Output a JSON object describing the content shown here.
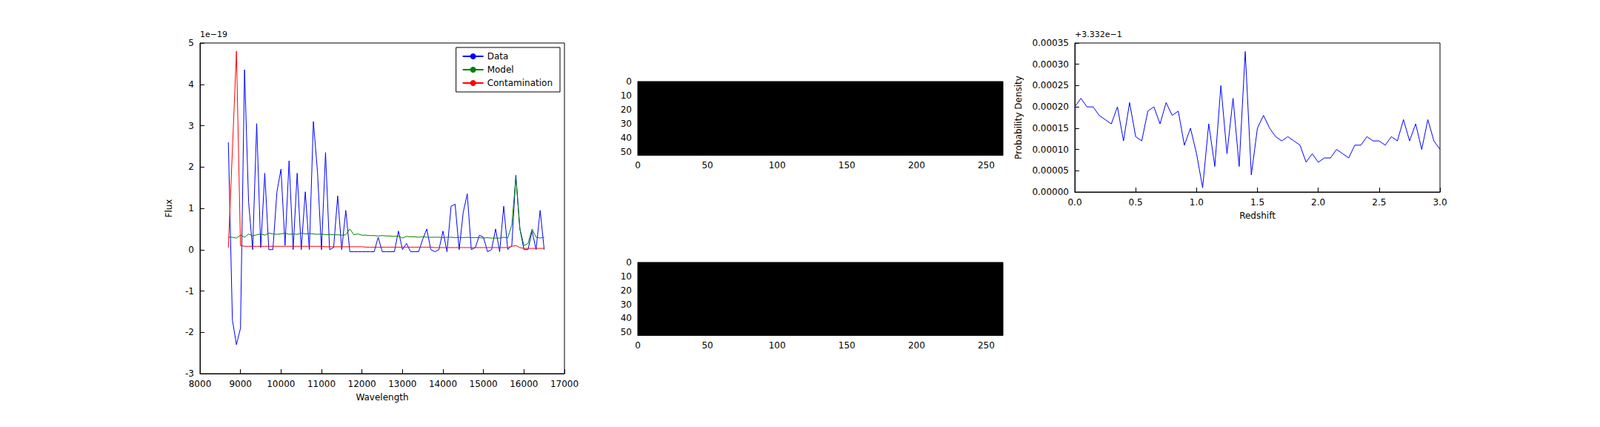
{
  "chart_data": [
    {
      "type": "line",
      "x_label": "Wavelength",
      "y_label": "Flux",
      "y_offset_text": "1e−19",
      "x": [
        8700,
        8800,
        8900,
        9000,
        9100,
        9200,
        9300,
        9400,
        9500,
        9600,
        9700,
        9800,
        9900,
        10000,
        10100,
        10200,
        10300,
        10400,
        10500,
        10600,
        10700,
        10800,
        10900,
        11000,
        11100,
        11200,
        11300,
        11400,
        11500,
        11600,
        11700,
        11800,
        11900,
        12000,
        12100,
        12200,
        12300,
        12400,
        12500,
        12600,
        12700,
        12800,
        12900,
        13000,
        13100,
        13200,
        13300,
        13400,
        13500,
        13600,
        13700,
        13800,
        13900,
        14000,
        14100,
        14200,
        14300,
        14400,
        14500,
        14600,
        14700,
        14800,
        14900,
        15000,
        15100,
        15200,
        15300,
        15400,
        15500,
        15600,
        15700,
        15800,
        15900,
        16000,
        16100,
        16200,
        16300,
        16400,
        16500
      ],
      "series": [
        {
          "name": "Data",
          "color": "#0000ff",
          "values": [
            2.6,
            -1.7,
            -2.3,
            -1.9,
            4.35,
            1.15,
            0.0,
            3.05,
            0.05,
            1.85,
            0.0,
            0.0,
            1.4,
            1.95,
            0.1,
            2.15,
            0.0,
            1.85,
            0.0,
            1.4,
            0.0,
            3.1,
            1.9,
            0.0,
            2.35,
            0.0,
            0.05,
            1.3,
            0.0,
            0.95,
            -0.05,
            -0.05,
            -0.05,
            -0.05,
            -0.05,
            -0.05,
            -0.05,
            0.3,
            -0.05,
            -0.05,
            -0.05,
            -0.05,
            0.45,
            0.0,
            0.15,
            -0.05,
            -0.05,
            -0.05,
            0.25,
            0.5,
            0.0,
            -0.05,
            0.0,
            0.45,
            -0.05,
            1.05,
            1.1,
            0.0,
            0.9,
            1.35,
            0.0,
            0.05,
            0.35,
            0.3,
            -0.05,
            0.0,
            0.5,
            -0.05,
            1.05,
            0.0,
            0.1,
            1.8,
            0.5,
            0.0,
            0.0,
            0.45,
            0.0,
            0.95,
            0.0
          ]
        },
        {
          "name": "Model",
          "color": "#008000",
          "values": [
            0.3,
            0.3,
            0.28,
            0.35,
            0.3,
            0.38,
            0.33,
            0.36,
            0.38,
            0.35,
            0.4,
            0.38,
            0.37,
            0.38,
            0.4,
            0.37,
            0.38,
            0.37,
            0.4,
            0.38,
            0.39,
            0.38,
            0.37,
            0.38,
            0.36,
            0.37,
            0.36,
            0.36,
            0.35,
            0.36,
            0.5,
            0.36,
            0.38,
            0.35,
            0.35,
            0.34,
            0.34,
            0.33,
            0.34,
            0.33,
            0.33,
            0.32,
            0.33,
            0.28,
            0.32,
            0.31,
            0.31,
            0.3,
            0.31,
            0.3,
            0.3,
            0.3,
            0.3,
            0.29,
            0.3,
            0.3,
            0.29,
            0.3,
            0.29,
            0.3,
            0.29,
            0.29,
            0.29,
            0.28,
            0.29,
            0.28,
            0.28,
            0.28,
            0.3,
            0.28,
            0.6,
            1.75,
            0.5,
            0.1,
            0.15,
            0.5,
            0.3,
            0.28,
            0.3
          ]
        },
        {
          "name": "Contamination",
          "color": "#ff0000",
          "values": [
            0.05,
            2.4,
            4.8,
            0.1,
            0.08,
            0.08,
            0.08,
            0.08,
            0.08,
            0.08,
            0.08,
            0.08,
            0.08,
            0.08,
            0.08,
            0.08,
            0.08,
            0.08,
            0.08,
            0.08,
            0.08,
            0.08,
            0.08,
            0.08,
            0.07,
            0.07,
            0.07,
            0.07,
            0.07,
            0.07,
            0.07,
            0.07,
            0.07,
            0.07,
            0.06,
            0.06,
            0.06,
            0.06,
            0.06,
            0.06,
            0.06,
            0.06,
            0.06,
            0.06,
            0.06,
            0.06,
            0.06,
            0.06,
            0.06,
            0.06,
            0.06,
            0.05,
            0.05,
            0.05,
            0.05,
            0.05,
            0.05,
            0.05,
            0.05,
            0.05,
            0.05,
            0.05,
            0.05,
            0.05,
            0.05,
            0.05,
            0.05,
            0.05,
            0.05,
            0.05,
            0.08,
            0.1,
            0.05,
            0.03,
            0.03,
            0.03,
            0.03,
            0.03,
            0.03
          ]
        }
      ],
      "xlim": [
        8000,
        17000
      ],
      "ylim": [
        -3,
        5
      ],
      "xticks": [
        8000,
        9000,
        10000,
        11000,
        12000,
        13000,
        14000,
        15000,
        16000,
        17000
      ],
      "yticks": [
        -3,
        -2,
        -1,
        0,
        1,
        2,
        3,
        4,
        5
      ],
      "legend": "upper right",
      "grid": false
    },
    {
      "type": "image",
      "color": "#000000",
      "xlim": [
        0,
        262
      ],
      "ylim": [
        0,
        52
      ],
      "xticks": [
        0,
        50,
        100,
        150,
        200,
        250
      ],
      "yticks": [
        0,
        10,
        20,
        30,
        40,
        50
      ],
      "grid": false
    },
    {
      "type": "image",
      "color": "#000000",
      "xlim": [
        0,
        262
      ],
      "ylim": [
        0,
        52
      ],
      "xticks": [
        0,
        50,
        100,
        150,
        200,
        250
      ],
      "yticks": [
        0,
        10,
        20,
        30,
        40,
        50
      ],
      "grid": false
    },
    {
      "type": "line",
      "x_label": "Redshift",
      "y_label": "Probability Density",
      "y_offset_text": "+3.332e−1",
      "x": [
        0.0,
        0.05,
        0.1,
        0.15,
        0.2,
        0.25,
        0.3,
        0.35,
        0.4,
        0.45,
        0.5,
        0.55,
        0.6,
        0.65,
        0.7,
        0.75,
        0.8,
        0.85,
        0.9,
        0.95,
        1.0,
        1.05,
        1.1,
        1.15,
        1.2,
        1.25,
        1.3,
        1.35,
        1.4,
        1.45,
        1.5,
        1.55,
        1.6,
        1.65,
        1.7,
        1.75,
        1.8,
        1.85,
        1.9,
        1.95,
        2.0,
        2.05,
        2.1,
        2.15,
        2.2,
        2.25,
        2.3,
        2.35,
        2.4,
        2.45,
        2.5,
        2.55,
        2.6,
        2.65,
        2.7,
        2.75,
        2.8,
        2.85,
        2.9,
        2.95,
        3.0
      ],
      "series": [
        {
          "color": "#0000ff",
          "values": [
            0.0002,
            0.00022,
            0.0002,
            0.0002,
            0.00018,
            0.00017,
            0.00016,
            0.0002,
            0.00012,
            0.00021,
            0.00013,
            0.00012,
            0.00019,
            0.0002,
            0.00016,
            0.00021,
            0.00018,
            0.00019,
            0.00011,
            0.00015,
            9e-05,
            1e-05,
            0.00016,
            6e-05,
            0.00025,
            9e-05,
            0.00022,
            6e-05,
            0.00033,
            4e-05,
            0.00015,
            0.00018,
            0.00015,
            0.00013,
            0.00012,
            0.00013,
            0.00012,
            0.00011,
            7e-05,
            9e-05,
            7e-05,
            8e-05,
            8e-05,
            0.0001,
            9e-05,
            8e-05,
            0.00011,
            0.00011,
            0.00013,
            0.00012,
            0.00012,
            0.00011,
            0.00013,
            0.00012,
            0.00017,
            0.00012,
            0.00016,
            0.0001,
            0.00017,
            0.00012,
            0.0001
          ]
        }
      ],
      "xlim": [
        0,
        3
      ],
      "ylim": [
        0,
        0.00035
      ],
      "xticks": [
        {
          "value": 0,
          "label": "0.0"
        },
        {
          "value": 0.5,
          "label": "0.5"
        },
        {
          "value": 1,
          "label": "1.0"
        },
        {
          "value": 1.5,
          "label": "1.5"
        },
        {
          "value": 2,
          "label": "2.0"
        },
        {
          "value": 2.5,
          "label": "2.5"
        },
        {
          "value": 3,
          "label": "3.0"
        }
      ],
      "yticks": [
        {
          "value": 0,
          "label": "0.00000"
        },
        {
          "value": 5e-05,
          "label": "0.00005"
        },
        {
          "value": 0.0001,
          "label": "0.00010"
        },
        {
          "value": 0.00015,
          "label": "0.00015"
        },
        {
          "value": 0.0002,
          "label": "0.00020"
        },
        {
          "value": 0.00025,
          "label": "0.00025"
        },
        {
          "value": 0.0003,
          "label": "0.00030"
        },
        {
          "value": 0.00035,
          "label": "0.00035"
        }
      ],
      "grid": false
    }
  ]
}
